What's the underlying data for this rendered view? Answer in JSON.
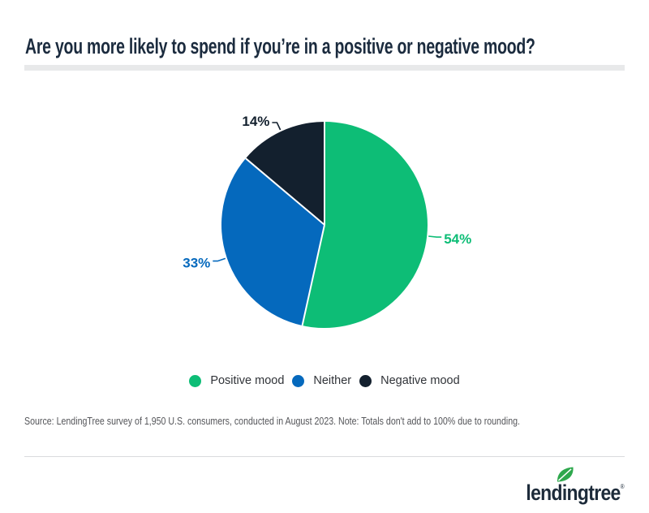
{
  "title": "Are you more likely to spend if you’re in a positive or negative mood?",
  "chart_data": {
    "type": "pie",
    "title": "Are you more likely to spend if you’re in a positive or negative mood?",
    "value_suffix": "%",
    "start_angle_deg": 0,
    "direction": "clockwise",
    "legend_position": "bottom",
    "slices": [
      {
        "label": "Positive mood",
        "value": 54,
        "color": "#0dbd76"
      },
      {
        "label": "Neither",
        "value": 33,
        "color": "#0569bd"
      },
      {
        "label": "Negative mood",
        "value": 14,
        "color": "#13202e"
      }
    ],
    "note": "Totals don't add to 100% due to rounding"
  },
  "source_note": "Source: LendingTree survey of 1,950 U.S. consumers, conducted in August 2023. Note: Totals don't add to 100% due to rounding.",
  "logo": {
    "text": "lendingtree",
    "registered_mark": "®",
    "text_color": "#1d2b3a",
    "leaf_color": "#2ea84d"
  }
}
